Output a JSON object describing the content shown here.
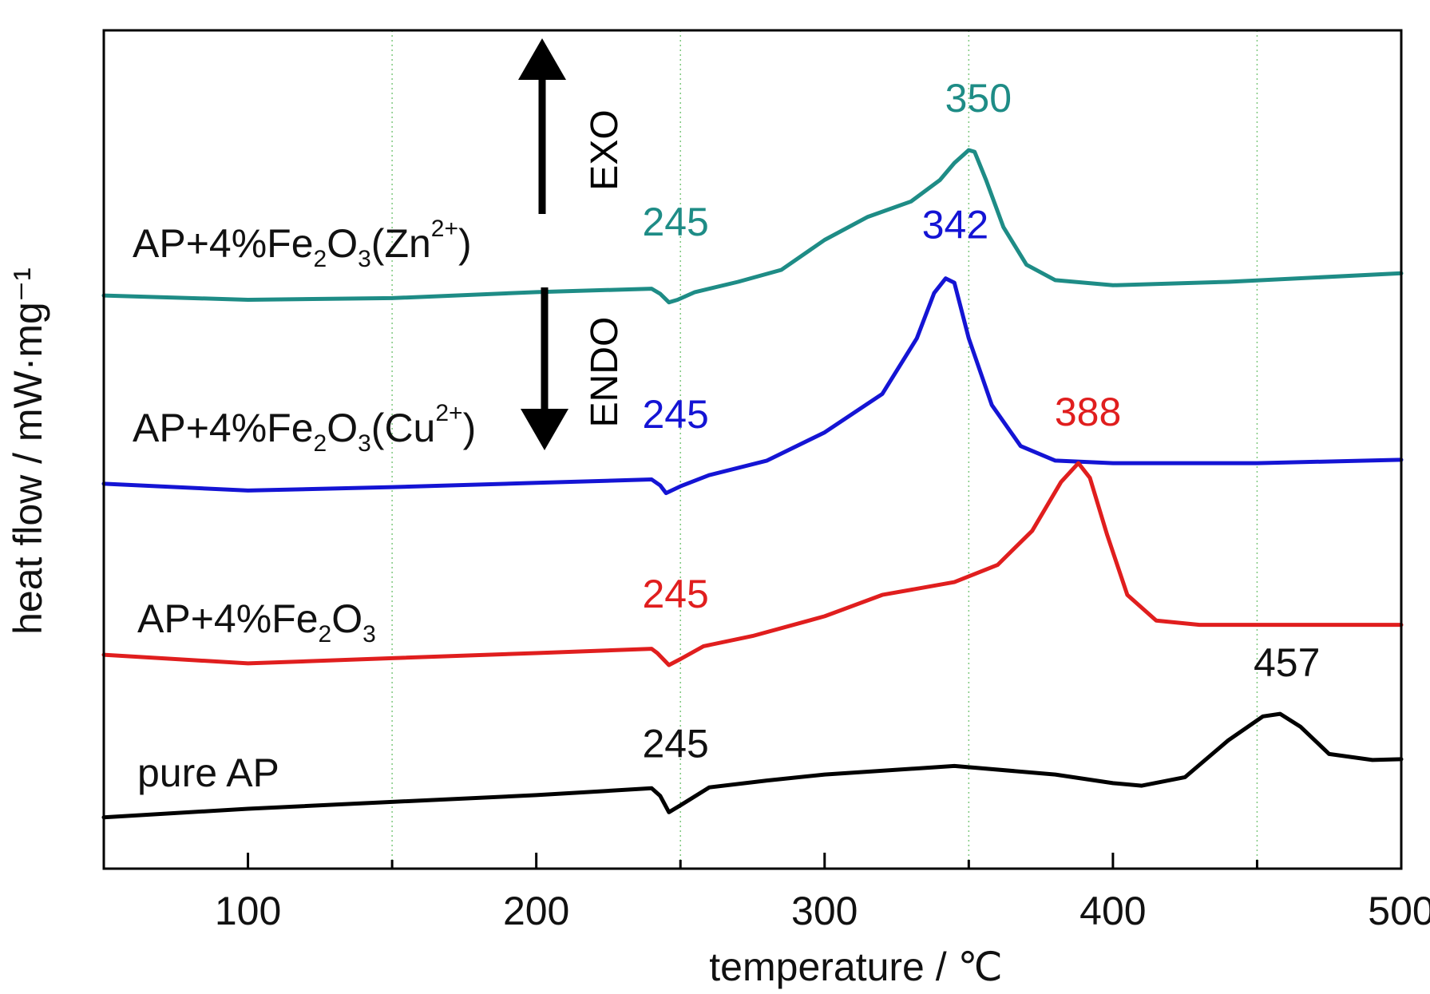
{
  "chart_data": {
    "type": "line",
    "xlabel": "temperature / ℃",
    "ylabel": "heat flow / mW·mg⁻¹",
    "xlim": [
      50,
      500
    ],
    "x_ticks_major": [
      100,
      200,
      300,
      400,
      500
    ],
    "x_gridlines": [
      150,
      250,
      350,
      450
    ],
    "grid": "vertical dotted at minor ticks",
    "y_ticks_visible": false,
    "annotations": {
      "exo": "EXO",
      "endo": "ENDO"
    },
    "series": [
      {
        "id": "zn",
        "label_parts": [
          {
            "t": "AP+4%Fe",
            "s": "n"
          },
          {
            "t": "2",
            "s": "sub"
          },
          {
            "t": "O",
            "s": "n"
          },
          {
            "t": "3",
            "s": "sub"
          },
          {
            "t": "(Zn",
            "s": "n"
          },
          {
            "t": "2+",
            "s": "sup"
          },
          {
            "t": ")",
            "s": "n"
          }
        ],
        "color": "#1e8c86",
        "points": [
          [
            50,
            0.0
          ],
          [
            100,
            -0.5
          ],
          [
            150,
            -0.3
          ],
          [
            200,
            0.4
          ],
          [
            240,
            0.8
          ],
          [
            243,
            0.2
          ],
          [
            246,
            -0.8
          ],
          [
            249,
            -0.5
          ],
          [
            255,
            0.4
          ],
          [
            270,
            1.6
          ],
          [
            285,
            3.0
          ],
          [
            300,
            6.5
          ],
          [
            315,
            9.2
          ],
          [
            330,
            11.0
          ],
          [
            340,
            13.5
          ],
          [
            345,
            15.5
          ],
          [
            350,
            17.0
          ],
          [
            352,
            16.8
          ],
          [
            356,
            13.5
          ],
          [
            362,
            8.0
          ],
          [
            370,
            3.6
          ],
          [
            380,
            1.8
          ],
          [
            400,
            1.2
          ],
          [
            440,
            1.6
          ],
          [
            500,
            2.6
          ]
        ],
        "peaks": [
          {
            "temp": 245,
            "label": "245",
            "at": [
              245,
              7.0
            ]
          },
          {
            "temp": 350,
            "label": "350",
            "at": [
              350,
              21.5
            ]
          }
        ]
      },
      {
        "id": "cu",
        "label_parts": [
          {
            "t": "AP+4%Fe",
            "s": "n"
          },
          {
            "t": "2",
            "s": "sub"
          },
          {
            "t": "O",
            "s": "n"
          },
          {
            "t": "3",
            "s": "sub"
          },
          {
            "t": "(Cu",
            "s": "n"
          },
          {
            "t": "2+",
            "s": "sup"
          },
          {
            "t": ")",
            "s": "n"
          }
        ],
        "color": "#1414d4",
        "points": [
          [
            50,
            -22.0
          ],
          [
            100,
            -22.8
          ],
          [
            150,
            -22.4
          ],
          [
            200,
            -21.9
          ],
          [
            240,
            -21.5
          ],
          [
            243,
            -22.2
          ],
          [
            245,
            -23.1
          ],
          [
            250,
            -22.3
          ],
          [
            260,
            -21.0
          ],
          [
            280,
            -19.3
          ],
          [
            300,
            -16.0
          ],
          [
            320,
            -11.5
          ],
          [
            332,
            -5.0
          ],
          [
            338,
            0.3
          ],
          [
            342,
            2.0
          ],
          [
            345,
            1.5
          ],
          [
            350,
            -5.0
          ],
          [
            358,
            -12.8
          ],
          [
            368,
            -17.6
          ],
          [
            380,
            -19.3
          ],
          [
            400,
            -19.6
          ],
          [
            450,
            -19.6
          ],
          [
            500,
            -19.2
          ]
        ],
        "peaks": [
          {
            "temp": 245,
            "label": "245",
            "at": [
              245,
              -15.5
            ]
          },
          {
            "temp": 342,
            "label": "342",
            "at": [
              342,
              6.7
            ]
          }
        ]
      },
      {
        "id": "fe",
        "label_parts": [
          {
            "t": "AP+4%Fe",
            "s": "n"
          },
          {
            "t": "2",
            "s": "sub"
          },
          {
            "t": "O",
            "s": "n"
          },
          {
            "t": "3",
            "s": "sub"
          }
        ],
        "color": "#e01e1e",
        "points": [
          [
            50,
            -42.0
          ],
          [
            100,
            -43.0
          ],
          [
            150,
            -42.4
          ],
          [
            200,
            -41.8
          ],
          [
            240,
            -41.3
          ],
          [
            242,
            -41.8
          ],
          [
            246,
            -43.2
          ],
          [
            250,
            -42.5
          ],
          [
            258,
            -41.0
          ],
          [
            275,
            -39.8
          ],
          [
            300,
            -37.5
          ],
          [
            320,
            -35.0
          ],
          [
            345,
            -33.5
          ],
          [
            360,
            -31.5
          ],
          [
            372,
            -27.5
          ],
          [
            382,
            -21.8
          ],
          [
            388,
            -19.6
          ],
          [
            392,
            -21.3
          ],
          [
            398,
            -28.0
          ],
          [
            405,
            -35.0
          ],
          [
            415,
            -38.0
          ],
          [
            430,
            -38.5
          ],
          [
            500,
            -38.5
          ]
        ],
        "peaks": [
          {
            "temp": 245,
            "label": "245",
            "at": [
              245,
              -36.5
            ]
          },
          {
            "temp": 388,
            "label": "388",
            "at": [
              388,
              -15.2
            ]
          }
        ]
      },
      {
        "id": "pure",
        "label_parts": [
          {
            "t": "pure AP",
            "s": "n"
          }
        ],
        "color": "#000000",
        "points": [
          [
            50,
            -61.0
          ],
          [
            100,
            -60.0
          ],
          [
            150,
            -59.2
          ],
          [
            200,
            -58.4
          ],
          [
            240,
            -57.6
          ],
          [
            243,
            -58.5
          ],
          [
            246,
            -60.4
          ],
          [
            250,
            -59.6
          ],
          [
            260,
            -57.5
          ],
          [
            280,
            -56.7
          ],
          [
            300,
            -56.0
          ],
          [
            345,
            -55.0
          ],
          [
            380,
            -56.0
          ],
          [
            400,
            -57.0
          ],
          [
            410,
            -57.3
          ],
          [
            425,
            -56.3
          ],
          [
            440,
            -52.0
          ],
          [
            452,
            -49.2
          ],
          [
            458,
            -48.9
          ],
          [
            465,
            -50.4
          ],
          [
            475,
            -53.6
          ],
          [
            490,
            -54.3
          ],
          [
            500,
            -54.2
          ]
        ],
        "peaks": [
          {
            "temp": 245,
            "label": "245",
            "at": [
              245,
              -54.0
            ]
          },
          {
            "temp": 457,
            "label": "457",
            "at": [
              457,
              -44.5
            ]
          }
        ]
      }
    ]
  }
}
